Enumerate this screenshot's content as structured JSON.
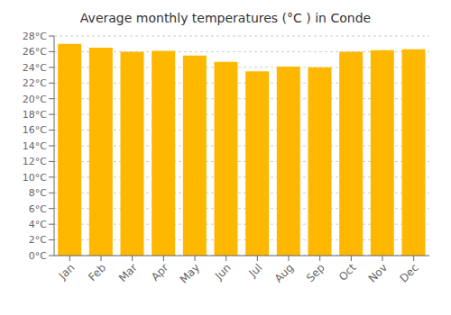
{
  "chart_data": {
    "type": "bar",
    "title": "Average monthly temperatures (°C ) in Conde",
    "categories": [
      "Jan",
      "Feb",
      "Mar",
      "Apr",
      "May",
      "Jun",
      "Jul",
      "Aug",
      "Sep",
      "Oct",
      "Nov",
      "Dec"
    ],
    "values": [
      27.0,
      26.5,
      26.0,
      26.1,
      25.5,
      24.7,
      23.5,
      24.1,
      24.0,
      26.0,
      26.2,
      26.3
    ],
    "color": "#FFB800",
    "ylim": [
      0,
      28
    ],
    "yticks": [
      {
        "value": 0,
        "label": "0°C"
      },
      {
        "value": 2,
        "label": "2°C"
      },
      {
        "value": 4,
        "label": "4°C"
      },
      {
        "value": 6,
        "label": "6°C"
      },
      {
        "value": 8,
        "label": "8°C"
      },
      {
        "value": 10,
        "label": "10°C"
      },
      {
        "value": 12,
        "label": "12°C"
      },
      {
        "value": 14,
        "label": "14°C"
      },
      {
        "value": 16,
        "label": "16°C"
      },
      {
        "value": 18,
        "label": "18°C"
      },
      {
        "value": 20,
        "label": "20°C"
      },
      {
        "value": 22,
        "label": "22°C"
      },
      {
        "value": 24,
        "label": "24°C"
      },
      {
        "value": 26,
        "label": "26°C"
      },
      {
        "value": 28,
        "label": "28°C"
      }
    ],
    "grid": true
  }
}
